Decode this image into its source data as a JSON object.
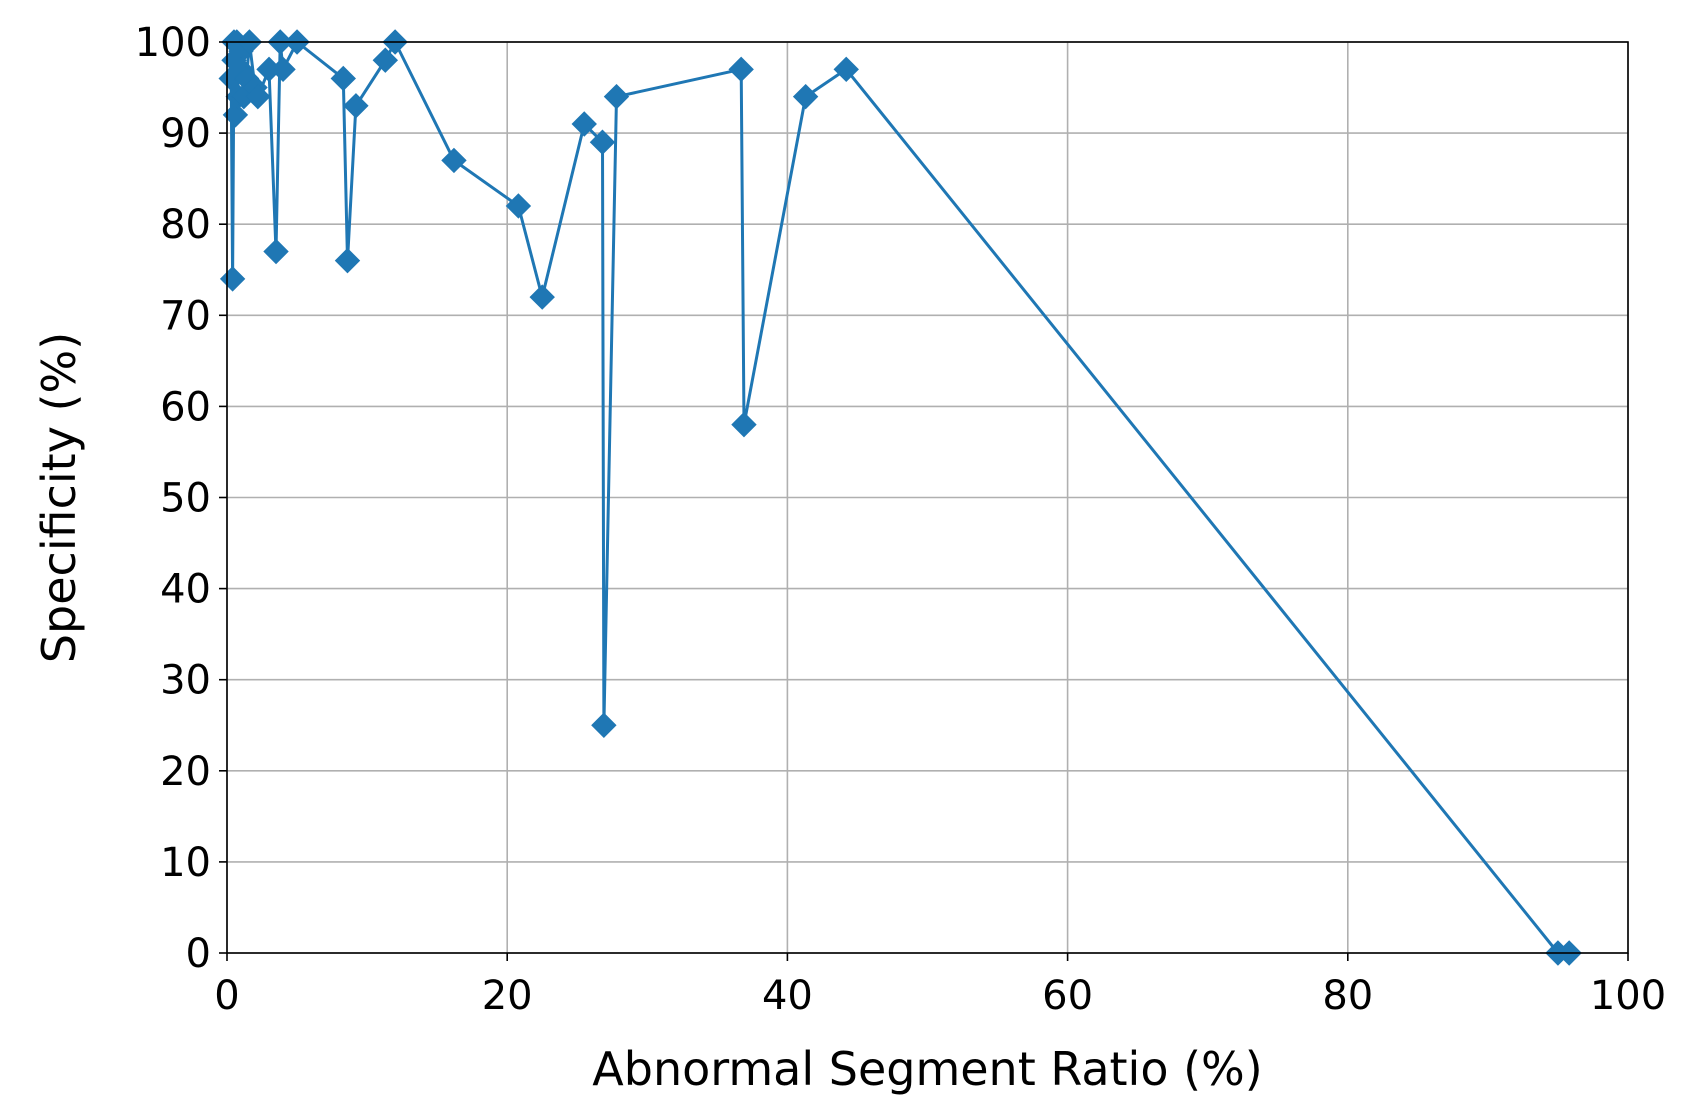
{
  "chart_data": {
    "type": "line",
    "title": "",
    "xlabel": "Abnormal Segment Ratio (%)",
    "ylabel": "Specificity (%)",
    "xlim": [
      0,
      100
    ],
    "ylim": [
      0,
      100
    ],
    "xticks": [
      "0",
      "20",
      "40",
      "60",
      "80",
      "100"
    ],
    "yticks": [
      "0",
      "10",
      "20",
      "30",
      "40",
      "50",
      "60",
      "70",
      "80",
      "90",
      "100"
    ],
    "grid": true,
    "legend": "none",
    "marker": "diamond",
    "series": [
      {
        "color": "#1f77b4",
        "x": [
          0.3,
          0.4,
          0.5,
          0.6,
          0.5,
          0.8,
          0.7,
          1.0,
          1.2,
          1.0,
          1.4,
          1.6,
          2.0,
          2.2,
          3.0,
          3.5,
          3.8,
          4.0,
          5.0,
          8.3,
          8.6,
          9.2,
          11.3,
          12.0,
          16.2,
          20.8,
          22.5,
          25.5,
          26.8,
          26.9,
          27.8,
          36.7,
          36.9,
          41.3,
          44.2,
          95.0,
          95.8
        ],
        "y": [
          96,
          74,
          100,
          92,
          98,
          94,
          100,
          99,
          94,
          97,
          96,
          100,
          95,
          94,
          97,
          77,
          100,
          97,
          100,
          96,
          76,
          93,
          98,
          100,
          87,
          82,
          72,
          91,
          89,
          25,
          94,
          97,
          58,
          94,
          97,
          0,
          0
        ]
      }
    ]
  }
}
